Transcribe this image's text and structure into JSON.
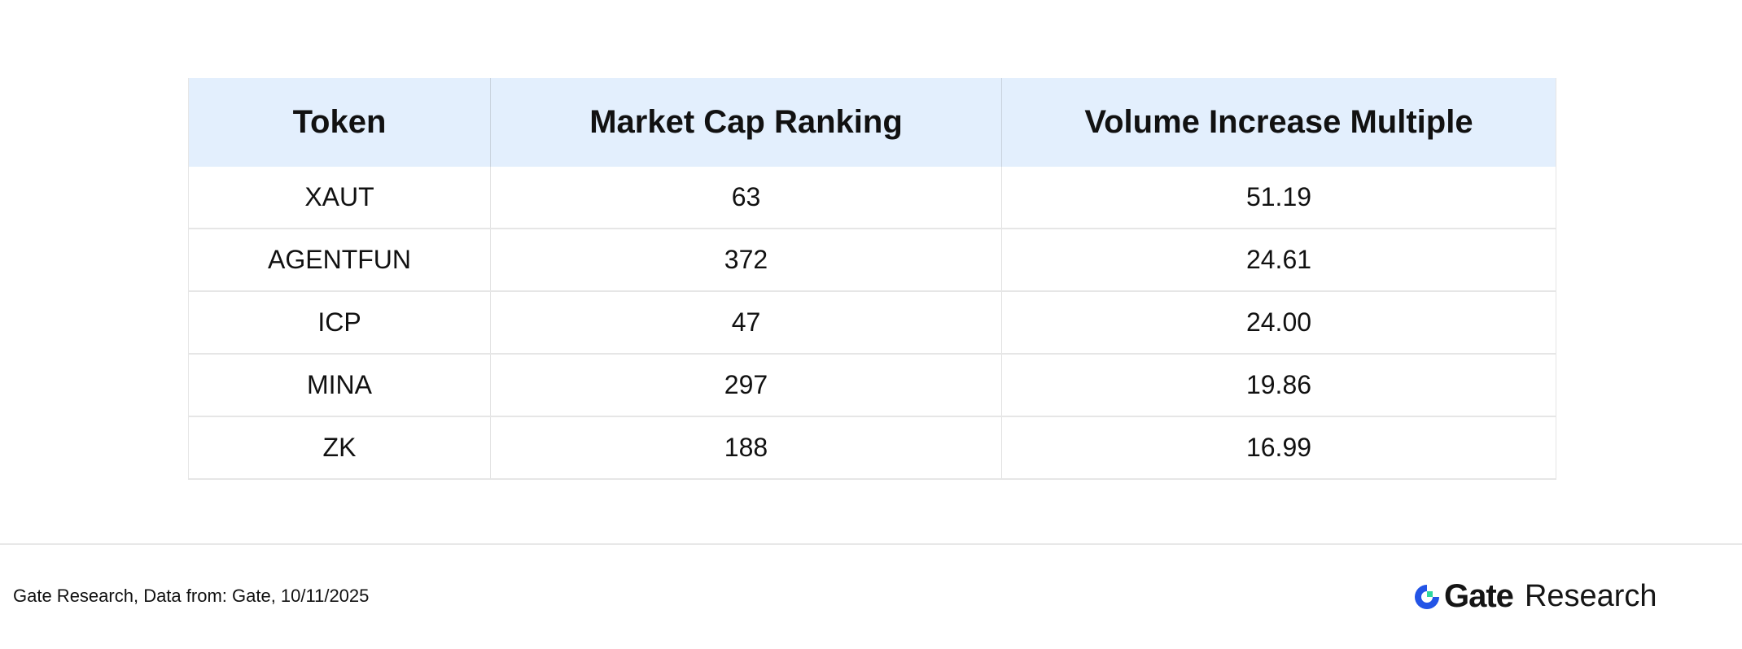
{
  "table": {
    "headers": [
      "Token",
      "Market Cap Ranking",
      "Volume Increase Multiple"
    ],
    "rows": [
      [
        "XAUT",
        "63",
        "51.19"
      ],
      [
        "AGENTFUN",
        "372",
        "24.61"
      ],
      [
        "ICP",
        "47",
        "24.00"
      ],
      [
        "MINA",
        "297",
        "19.86"
      ],
      [
        "ZK",
        "188",
        "16.99"
      ]
    ]
  },
  "footer": {
    "source": "Gate Research, Data from: Gate, 10/11/2025",
    "logo_word": "Gate",
    "logo_sub": "Research"
  },
  "colors": {
    "header_bg": "#e3effd",
    "logo_blue": "#2354e6",
    "logo_green": "#2fd6a0"
  }
}
